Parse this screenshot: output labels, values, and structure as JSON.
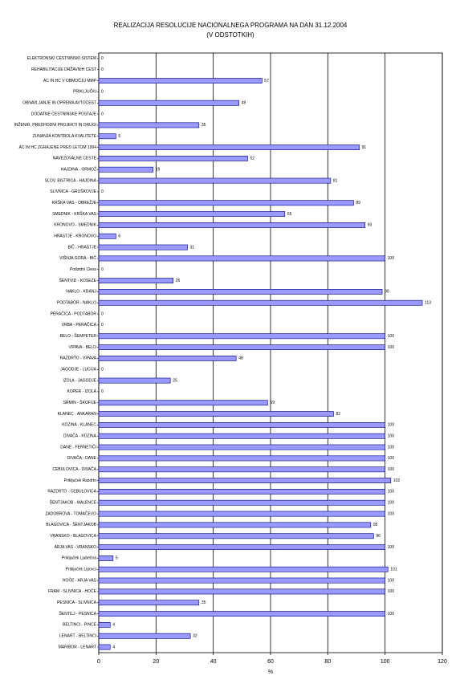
{
  "chart_data": {
    "type": "barh",
    "title": "REALIZACIJA RESOLUCIJE NACIONALNEGA PROGRAMA NA DAN 31.12.2004",
    "subtitle": "(V ODSTOTKIH)",
    "x_label": "%",
    "color": "#9999ff",
    "categories": [
      "ELEKTRONSKI CESTNINSKI SISTEM",
      "REHABILITACIJE DRŽAVNIH CEST",
      "AC IN HC V OBMOČJU MMP",
      "PRIKLJUČKI",
      "OBNAVLJANJE IN OPREMA AVTOCEST",
      "DODATNE CESTNINSKE POSTAJE",
      "INŽENIR, PREDHODNI PROJEKTI IN DRUGI",
      "ZUNANJA KONTROLA KVALITETE",
      "AC IN HC ZGRAJENE PRED LETOM 1994",
      "NAVEZOVALNE CESTE",
      "HAJDINA - ORMOŽ",
      "SLOV. BISTRICA - HAJDINA",
      "SLIVNICA - GRUŠKOVJE",
      "KRŠKA VAS - OBREŽJE",
      "SMEDNIK - KRŠKA VAS",
      "KRONOVO - SMEDNIK",
      "HRASTJE - KRONOVO",
      "BIČ - HRASTJE",
      "VIŠNJA GORA - BIČ",
      "Podzidni Ciess",
      "ŠENTVID - KOSEZE",
      "NAKLO - KRANJ",
      "PODTABOR - NAKLO",
      "PERAČICA - PODTABOR",
      "VRBA - PERAČICA",
      "BELO - ŠEMPETER",
      "VIPAVA - BELO",
      "RAZDRTO - VIPAVA",
      "JAGODJE - LUCIJA",
      "IZOLA - JAGODJE",
      "KOPER - IZOLA",
      "SRMIN - ŠKOFIJE",
      "KLANEC - ANKARAN",
      "KOZINA - KLANEC",
      "DIVAČA - KOZINA",
      "DANE - FERNETIČI",
      "DIVAČA - DANE",
      "CEBULOVICA - DIVAČA",
      "Priključek Razdrto",
      "RAZDRTO - CEBULOVICA",
      "ŠENTJAKOB - MALENCE",
      "ZADOBROVA - TOMAČEVO",
      "BLAGOVICA - ŠENTJAKOB",
      "VRANSKO - BLAGOVICA",
      "ARJA VAS - VRANSKO",
      "Priključek Ljubečna",
      "Priključek Lipovci",
      "HOČE - ARJA VAS",
      "FRAM - SLIVNICA - HOČE",
      "PESNICA - SLIVNICA",
      "ŠENTILJ - PESNICA",
      "BELTINCI - PINCE",
      "LENART - BELTINCI",
      "MARIBOR - LENART"
    ],
    "values": [
      0,
      0,
      57,
      0,
      49,
      0,
      35,
      6,
      91,
      52,
      19,
      81,
      0,
      89,
      65,
      93,
      6,
      31,
      100,
      0,
      26,
      99,
      113,
      0,
      0,
      100,
      100,
      48,
      0,
      25,
      0,
      59,
      82,
      100,
      100,
      100,
      100,
      100,
      102,
      100,
      100,
      100,
      95,
      96,
      100,
      5,
      101,
      100,
      100,
      35,
      100,
      4,
      32,
      4
    ],
    "xlim": [
      0,
      120
    ],
    "xticks": [
      0,
      20,
      40,
      60,
      80,
      100,
      120
    ],
    "grid": true
  }
}
